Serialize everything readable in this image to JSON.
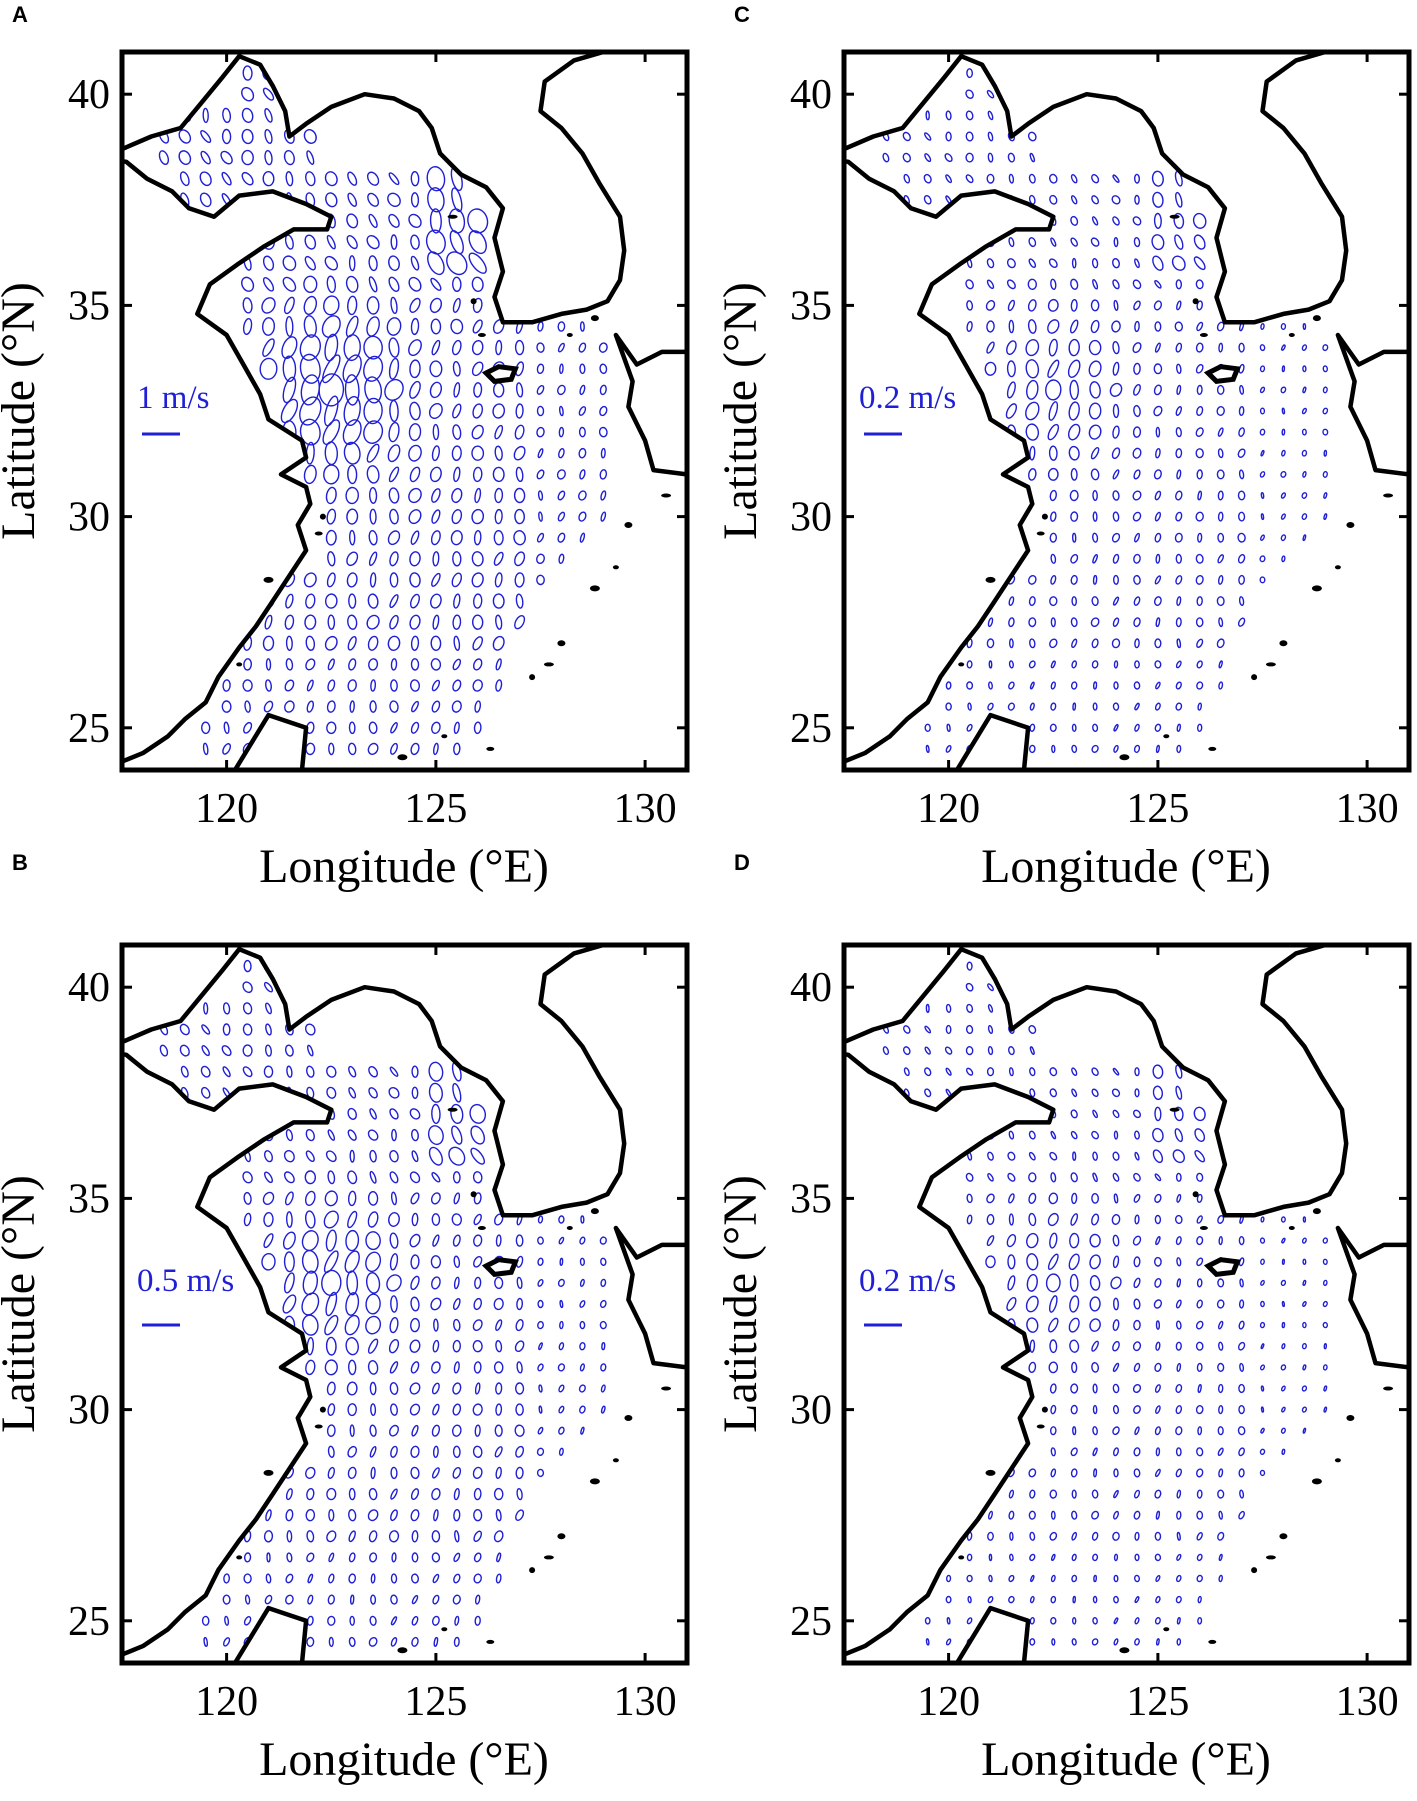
{
  "figure": {
    "panels": [
      {
        "id": "A",
        "letter": "A",
        "scale_label": "1 m/s",
        "ellipse_scale": 1.0
      },
      {
        "id": "B",
        "letter": "B",
        "scale_label": "0.5 m/s",
        "ellipse_scale": 0.78
      },
      {
        "id": "C",
        "letter": "C",
        "scale_label": "0.2 m/s",
        "ellipse_scale": 0.62
      },
      {
        "id": "D",
        "letter": "D",
        "scale_label": "0.2 m/s",
        "ellipse_scale": 0.55
      }
    ],
    "x_axis": {
      "label": "Longitude (°E)",
      "ticks": [
        "120",
        "125",
        "130"
      ],
      "range": [
        117.5,
        131
      ]
    },
    "y_axis": {
      "label": "Latitude (°N)",
      "ticks": [
        "25",
        "30",
        "35",
        "40"
      ],
      "range": [
        24,
        41
      ]
    },
    "colors": {
      "ellipse": "#1f1fd6",
      "coast": "#000000",
      "frame": "#000000"
    }
  },
  "chart_data": {
    "type": "map",
    "x_range": [
      117.5,
      131
    ],
    "y_range": [
      24,
      41
    ],
    "x_ticks": [
      120,
      125,
      130
    ],
    "y_ticks": [
      25,
      30,
      35,
      40
    ],
    "xlabel": "Longitude (°E)",
    "ylabel": "Latitude (°N)",
    "scale_bars": [
      {
        "panel": "A",
        "label": "1 m/s"
      },
      {
        "panel": "B",
        "label": "0.5 m/s"
      },
      {
        "panel": "C",
        "label": "0.2 m/s"
      },
      {
        "panel": "D",
        "label": "0.2 m/s"
      }
    ]
  }
}
